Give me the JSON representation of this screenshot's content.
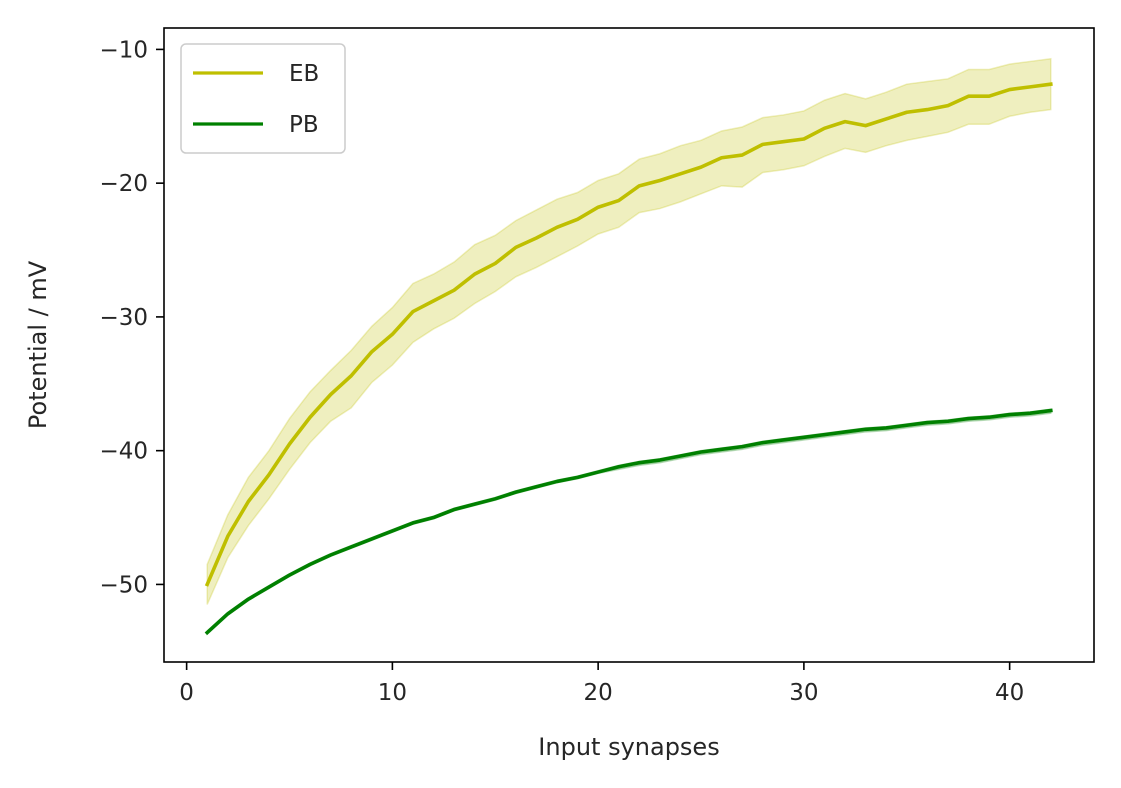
{
  "chart_data": {
    "type": "line",
    "title": "",
    "xlabel": "Input synapses",
    "ylabel": "Potential / mV",
    "xlim": [
      -1.1,
      44.1
    ],
    "ylim": [
      -55.8,
      -8.4
    ],
    "xticks": [
      0,
      10,
      20,
      30,
      40
    ],
    "yticks": [
      -50,
      -40,
      -30,
      -20,
      -10
    ],
    "grid": false,
    "legend_position": "top-left",
    "x": [
      1,
      2,
      3,
      4,
      5,
      6,
      7,
      8,
      9,
      10,
      11,
      12,
      13,
      14,
      15,
      16,
      17,
      18,
      19,
      20,
      21,
      22,
      23,
      24,
      25,
      26,
      27,
      28,
      29,
      30,
      31,
      32,
      33,
      34,
      35,
      36,
      37,
      38,
      39,
      40,
      41,
      42
    ],
    "series": [
      {
        "name": "EB",
        "color": "#bfbf00",
        "values": [
          -50.0,
          -46.4,
          -43.8,
          -41.8,
          -39.5,
          -37.5,
          -35.8,
          -34.4,
          -32.6,
          -31.3,
          -29.6,
          -28.8,
          -28.0,
          -26.8,
          -26.0,
          -24.8,
          -24.1,
          -23.3,
          -22.7,
          -21.8,
          -21.3,
          -20.2,
          -19.8,
          -19.3,
          -18.8,
          -18.1,
          -17.9,
          -17.1,
          -16.9,
          -16.7,
          -15.9,
          -15.4,
          -15.7,
          -15.2,
          -14.7,
          -14.5,
          -14.2,
          -13.5,
          -13.5,
          -13.0,
          -12.8,
          -12.6
        ],
        "band_upper": [
          -48.5,
          -44.8,
          -42.0,
          -40.0,
          -37.6,
          -35.6,
          -34.0,
          -32.5,
          -30.7,
          -29.3,
          -27.5,
          -26.8,
          -25.9,
          -24.6,
          -23.9,
          -22.8,
          -22.0,
          -21.2,
          -20.7,
          -19.8,
          -19.3,
          -18.2,
          -17.8,
          -17.2,
          -16.8,
          -16.1,
          -15.8,
          -15.1,
          -14.9,
          -14.6,
          -13.8,
          -13.3,
          -13.7,
          -13.2,
          -12.6,
          -12.4,
          -12.2,
          -11.5,
          -11.5,
          -11.1,
          -10.9,
          -10.7
        ],
        "band_lower": [
          -51.5,
          -48.0,
          -45.6,
          -43.6,
          -41.4,
          -39.4,
          -37.8,
          -36.8,
          -34.9,
          -33.6,
          -31.9,
          -30.9,
          -30.1,
          -29.0,
          -28.1,
          -27.0,
          -26.3,
          -25.5,
          -24.7,
          -23.8,
          -23.3,
          -22.2,
          -21.9,
          -21.4,
          -20.8,
          -20.2,
          -20.3,
          -19.2,
          -19.0,
          -18.7,
          -18.0,
          -17.4,
          -17.7,
          -17.2,
          -16.8,
          -16.5,
          -16.2,
          -15.6,
          -15.6,
          -15.0,
          -14.7,
          -14.5
        ]
      },
      {
        "name": "PB",
        "color": "#008000",
        "values": [
          -53.6,
          -52.2,
          -51.1,
          -50.2,
          -49.3,
          -48.5,
          -47.8,
          -47.2,
          -46.6,
          -46.0,
          -45.4,
          -45.0,
          -44.4,
          -44.0,
          -43.6,
          -43.1,
          -42.7,
          -42.3,
          -42.0,
          -41.6,
          -41.2,
          -40.9,
          -40.7,
          -40.4,
          -40.1,
          -39.9,
          -39.7,
          -39.4,
          -39.2,
          -39.0,
          -38.8,
          -38.6,
          -38.4,
          -38.3,
          -38.1,
          -37.9,
          -37.8,
          -37.6,
          -37.5,
          -37.3,
          -37.2,
          -37.0
        ],
        "band_upper": [
          -53.5,
          -52.1,
          -51.0,
          -50.1,
          -49.2,
          -48.4,
          -47.7,
          -47.1,
          -46.5,
          -45.9,
          -45.3,
          -44.9,
          -44.3,
          -43.9,
          -43.5,
          -43.0,
          -42.6,
          -42.2,
          -41.9,
          -41.5,
          -41.1,
          -40.8,
          -40.6,
          -40.3,
          -40.0,
          -39.8,
          -39.6,
          -39.3,
          -39.1,
          -38.9,
          -38.7,
          -38.5,
          -38.3,
          -38.2,
          -38.0,
          -37.8,
          -37.7,
          -37.5,
          -37.4,
          -37.2,
          -37.1,
          -36.9
        ],
        "band_lower": [
          -53.7,
          -52.3,
          -51.2,
          -50.3,
          -49.4,
          -48.6,
          -47.9,
          -47.3,
          -46.7,
          -46.1,
          -45.5,
          -45.1,
          -44.5,
          -44.1,
          -43.7,
          -43.2,
          -42.8,
          -42.4,
          -42.1,
          -41.7,
          -41.4,
          -41.1,
          -40.9,
          -40.6,
          -40.3,
          -40.1,
          -39.9,
          -39.6,
          -39.4,
          -39.2,
          -39.0,
          -38.8,
          -38.6,
          -38.5,
          -38.3,
          -38.1,
          -38.0,
          -37.8,
          -37.7,
          -37.5,
          -37.4,
          -37.2
        ]
      }
    ]
  }
}
